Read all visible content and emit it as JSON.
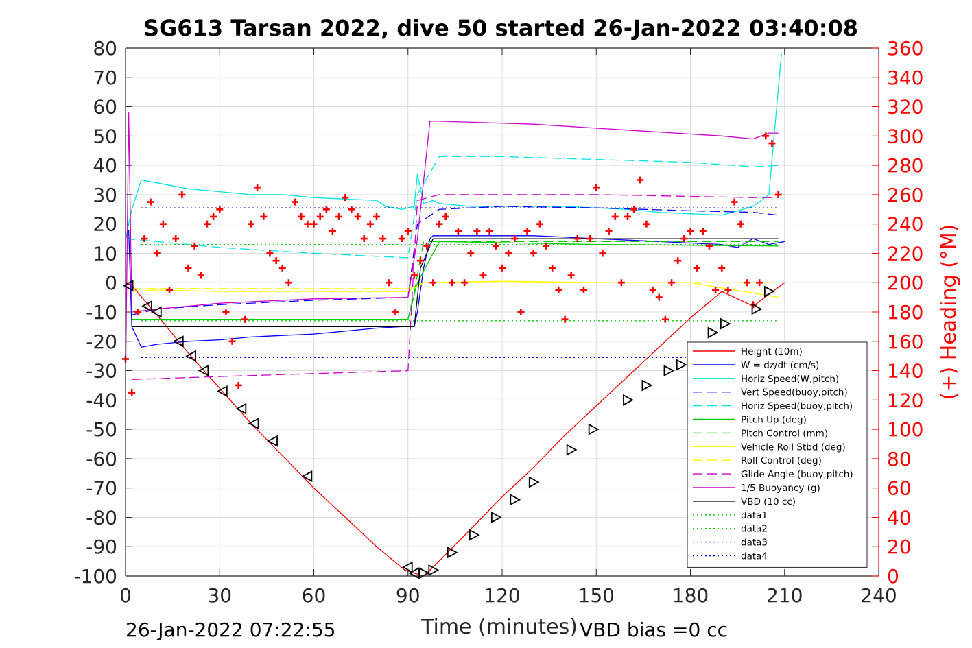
{
  "chart_data": {
    "type": "line",
    "title": "SG613 Tarsan 2022, dive 50 started 26-Jan-2022 03:40:08",
    "xlabel": "Time (minutes)",
    "ylabel": "",
    "y2label": "(+) Heading (°M)",
    "xlim": [
      0,
      240
    ],
    "ylim": [
      -100,
      80
    ],
    "y2lim": [
      0,
      360
    ],
    "xticks": [
      0,
      30,
      60,
      90,
      120,
      150,
      180,
      210,
      240
    ],
    "yticks": [
      80,
      70,
      60,
      50,
      40,
      30,
      20,
      10,
      0,
      -10,
      -20,
      -30,
      -40,
      -50,
      -60,
      -70,
      -80,
      -90,
      -100
    ],
    "y2ticks": [
      360,
      340,
      320,
      300,
      280,
      260,
      240,
      220,
      200,
      180,
      160,
      140,
      120,
      100,
      80,
      60,
      40,
      20,
      0
    ],
    "grid": true,
    "legend_position": "bottom-right",
    "footer_left": "26-Jan-2022 07:22:55",
    "footer_right": "VBD bias =0 cc",
    "series": [
      {
        "name": "Height (10m)",
        "color": "#ff0000",
        "style": "solid",
        "x": [
          0,
          2,
          10,
          20,
          30,
          40,
          50,
          60,
          70,
          80,
          89,
          92,
          95,
          98,
          110,
          120,
          130,
          140,
          150,
          160,
          170,
          180,
          190,
          200,
          210
        ],
        "y": [
          0,
          -1,
          -11,
          -24,
          -36,
          -48,
          -59,
          -70,
          -80,
          -90,
          -98,
          -99,
          -100,
          -97,
          -84,
          -73,
          -63,
          -52,
          -42,
          -32,
          -22,
          -12,
          -3,
          -8,
          0
        ]
      },
      {
        "name": "W = dz/dt (cm/s)",
        "color": "#0000ff",
        "style": "solid",
        "x": [
          0,
          1,
          2,
          5,
          10,
          20,
          30,
          40,
          50,
          60,
          70,
          80,
          88,
          92,
          93,
          95,
          97,
          98,
          100,
          110,
          120,
          130,
          140,
          150,
          160,
          170,
          180,
          190,
          195,
          200,
          205,
          210
        ],
        "y": [
          15,
          18,
          -15,
          -22,
          -21,
          -20,
          -19.5,
          -18.5,
          -18,
          -17.5,
          -16.5,
          -15.5,
          -15,
          -15,
          -10,
          5,
          15,
          16,
          16,
          16,
          16,
          16,
          15.5,
          15,
          14.5,
          14,
          13.5,
          13,
          12,
          15,
          13,
          14
        ]
      },
      {
        "name": "Horiz Speed(W,pitch)",
        "color": "#00e5e5",
        "style": "solid",
        "x": [
          0,
          2,
          5,
          10,
          20,
          30,
          40,
          50,
          60,
          70,
          80,
          83,
          88,
          92,
          93,
          95,
          98,
          100,
          110,
          120,
          130,
          140,
          150,
          160,
          170,
          180,
          190,
          200,
          205,
          209
        ],
        "y": [
          15,
          25,
          35,
          34,
          32,
          31,
          30,
          30,
          29,
          28.5,
          28,
          26,
          25,
          26,
          37,
          27,
          28,
          27,
          26,
          26,
          26,
          26,
          25.5,
          25,
          24,
          23.5,
          23,
          26,
          30,
          78
        ]
      },
      {
        "name": "Vert Speed(buoy,pitch)",
        "color": "#0000ff",
        "style": "dashed",
        "x": [
          2,
          10,
          30,
          60,
          90,
          93,
          100,
          120,
          150,
          180,
          200,
          208
        ],
        "y": [
          -11,
          -9,
          -7.5,
          -6,
          -5,
          20,
          25,
          26,
          25.5,
          24.5,
          24,
          23
        ]
      },
      {
        "name": "Horiz Speed(buoy,pitch)",
        "color": "#00e5e5",
        "style": "dashed",
        "x": [
          0,
          10,
          30,
          60,
          90,
          93,
          100,
          120,
          150,
          180,
          200,
          208
        ],
        "y": [
          15,
          14,
          12,
          10,
          8.5,
          30,
          43,
          43,
          42,
          41,
          39.5,
          40
        ]
      },
      {
        "name": "Pitch Up (deg)",
        "color": "#00cc00",
        "style": "solid",
        "x": [
          2,
          10,
          30,
          60,
          90,
          93,
          100,
          150,
          208
        ],
        "y": [
          -12.5,
          -12.5,
          -12.5,
          -12.5,
          -12.5,
          0,
          14,
          13,
          12.5
        ]
      },
      {
        "name": "Pitch Control (mm)",
        "color": "#00cc00",
        "style": "dashed",
        "x": [
          2,
          90,
          92,
          95,
          208
        ],
        "y": [
          -12.5,
          -12.5,
          -3,
          14,
          14
        ]
      },
      {
        "name": "Vehicle Roll Stbd (deg)",
        "color": "#ffff00",
        "style": "solid",
        "x": [
          2,
          10,
          30,
          60,
          90,
          95,
          120,
          150,
          180,
          208
        ],
        "y": [
          -3,
          -2.5,
          -3,
          -3,
          -3,
          0,
          0.5,
          0,
          0,
          -5
        ]
      },
      {
        "name": "Roll Control (deg)",
        "color": "#ffff00",
        "style": "dashed",
        "x": [
          2,
          90,
          95,
          208
        ],
        "y": [
          -2,
          -2,
          0,
          0
        ]
      },
      {
        "name": "Glide Angle (buoy,pitch)",
        "color": "#cc00cc",
        "style": "dashed",
        "x": [
          2,
          30,
          60,
          90,
          93,
          100,
          150,
          200,
          208
        ],
        "y": [
          -33,
          -32,
          -31,
          -30,
          28,
          30,
          30,
          29,
          29
        ]
      },
      {
        "name": "1/5 Buoyancy (g)",
        "color": "#cc00cc",
        "style": "solid",
        "x": [
          0,
          1,
          2,
          10,
          30,
          60,
          90,
          93,
          97,
          100,
          130,
          160,
          190,
          200,
          205,
          208
        ],
        "y": [
          -35,
          58,
          -10,
          -9,
          -7,
          -5.5,
          -5,
          15,
          55,
          55,
          54,
          52,
          50,
          49,
          51,
          51
        ]
      },
      {
        "name": "VBD (10 cc)",
        "color": "#000000",
        "style": "solid",
        "x": [
          2,
          92,
          94,
          98,
          208
        ],
        "y": [
          -15,
          -15,
          5,
          15,
          15
        ]
      },
      {
        "name": "data1",
        "color": "#00cc00",
        "style": "dotted",
        "x": [
          5,
          208
        ],
        "y": [
          -13,
          -13
        ]
      },
      {
        "name": "data2",
        "color": "#00cc00",
        "style": "dotted",
        "x": [
          5,
          208
        ],
        "y": [
          13,
          13
        ]
      },
      {
        "name": "data3",
        "color": "#0000cc",
        "style": "dotted",
        "x": [
          5,
          208
        ],
        "y": [
          25.5,
          25.5
        ]
      },
      {
        "name": "data4",
        "color": "#0000cc",
        "style": "dotted",
        "x": [
          5,
          208
        ],
        "y": [
          -25.5,
          -25.5
        ]
      }
    ],
    "heading": {
      "color": "#ff0000",
      "marker": "+",
      "axis": "right",
      "x": [
        0,
        2,
        4,
        6,
        8,
        10,
        12,
        14,
        16,
        18,
        20,
        22,
        24,
        26,
        28,
        30,
        32,
        34,
        36,
        38,
        40,
        42,
        44,
        46,
        48,
        50,
        52,
        54,
        56,
        58,
        60,
        62,
        64,
        66,
        68,
        70,
        72,
        74,
        76,
        78,
        80,
        82,
        84,
        86,
        88,
        90,
        92,
        94,
        96,
        98,
        100,
        102,
        104,
        106,
        108,
        110,
        112,
        114,
        116,
        118,
        120,
        122,
        124,
        126,
        128,
        130,
        132,
        134,
        136,
        138,
        140,
        142,
        144,
        146,
        148,
        150,
        152,
        154,
        156,
        158,
        160,
        162,
        164,
        166,
        168,
        170,
        172,
        174,
        176,
        178,
        180,
        182,
        184,
        186,
        188,
        190,
        192,
        194,
        196,
        198,
        200,
        202,
        204,
        206,
        208
      ],
      "y": [
        148,
        125,
        180,
        230,
        255,
        220,
        240,
        195,
        230,
        260,
        210,
        225,
        205,
        240,
        245,
        250,
        180,
        160,
        130,
        175,
        240,
        265,
        245,
        220,
        215,
        210,
        200,
        255,
        245,
        240,
        240,
        245,
        250,
        235,
        245,
        258,
        250,
        245,
        230,
        240,
        245,
        230,
        200,
        180,
        230,
        235,
        205,
        215,
        225,
        200,
        240,
        245,
        200,
        235,
        200,
        220,
        235,
        205,
        235,
        225,
        210,
        220,
        230,
        180,
        235,
        220,
        240,
        225,
        210,
        195,
        175,
        205,
        230,
        195,
        230,
        265,
        220,
        235,
        245,
        200,
        245,
        250,
        270,
        240,
        195,
        190,
        175,
        200,
        215,
        230,
        235,
        210,
        235,
        225,
        195,
        210,
        195,
        255,
        240,
        200,
        185,
        200,
        300,
        295,
        260
      ]
    },
    "markers": {
      "color": "#000000",
      "axis": "left",
      "down_x": [
        1,
        7,
        10,
        17,
        21,
        25,
        31,
        37,
        41,
        47,
        58,
        90,
        92
      ],
      "down_y": [
        -1,
        -8,
        -10,
        -20,
        -25,
        -30,
        -37,
        -43,
        -48,
        -54,
        -66,
        -97,
        -99
      ],
      "up_x": [
        95,
        98,
        104,
        111,
        118,
        124,
        130,
        142,
        149,
        160,
        166,
        173,
        177,
        187,
        191,
        201,
        205
      ],
      "up_y": [
        -99,
        -98,
        -92,
        -86,
        -80,
        -74,
        -68,
        -57,
        -50,
        -40,
        -35,
        -30,
        -28,
        -17,
        -14,
        -9,
        -3
      ]
    }
  }
}
